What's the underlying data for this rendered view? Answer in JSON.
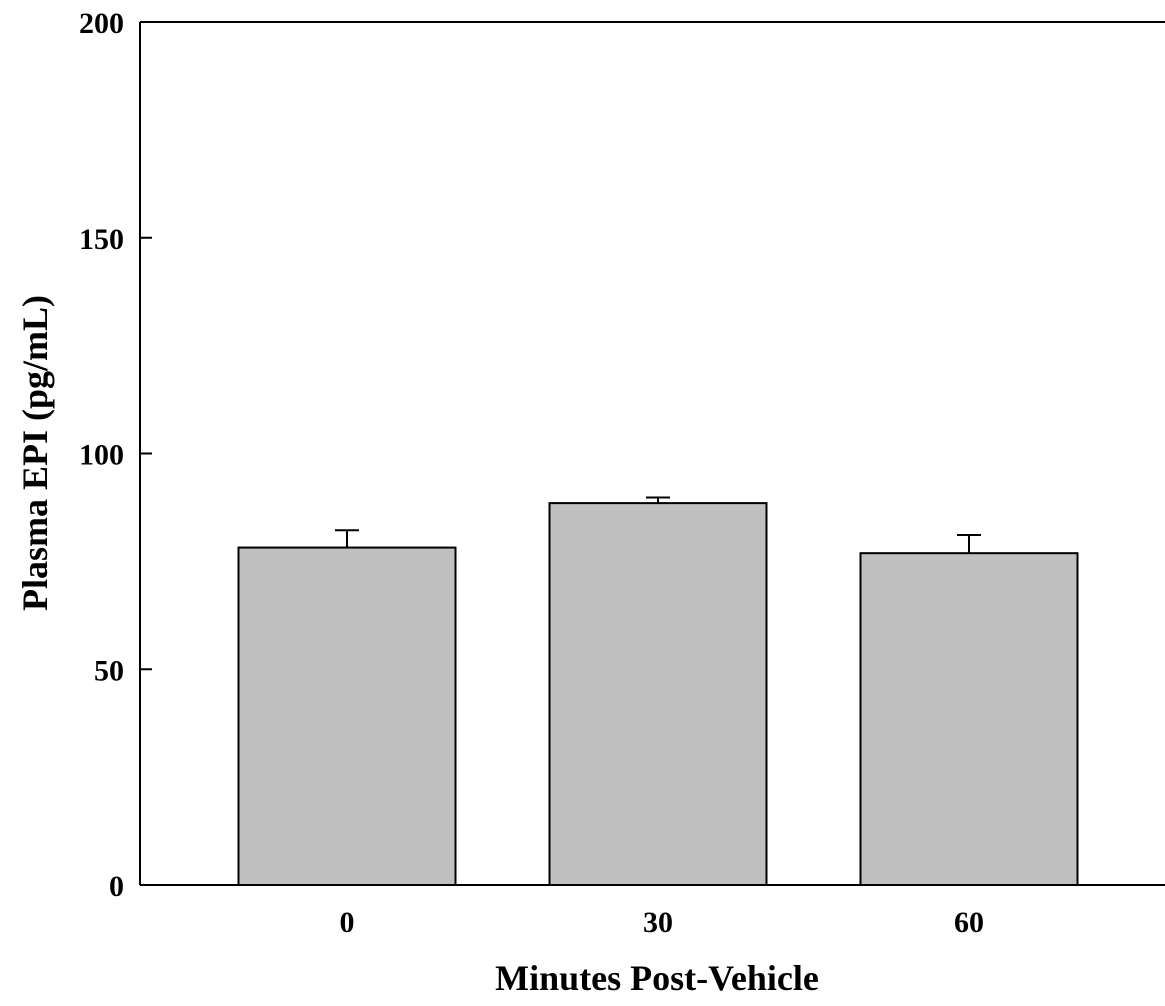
{
  "chart_data": {
    "type": "bar",
    "title": "",
    "xlabel": "Minutes Post-Vehicle",
    "ylabel": "Plasma EPI (pg/mL)",
    "categories": [
      "0",
      "30",
      "60"
    ],
    "values": [
      78.2,
      88.5,
      76.9
    ],
    "error_upper": [
      4.0,
      1.3,
      4.2
    ],
    "ylim": [
      0,
      200
    ],
    "yticks": [
      0,
      50,
      100,
      150,
      200
    ],
    "ytick_labels": [
      "0",
      "50",
      "100",
      "150",
      "200"
    ],
    "grid": false,
    "legend": "none",
    "colors": {
      "bar_fill": "#c0c0c0",
      "bar_stroke": "#000000",
      "axis": "#000000"
    }
  }
}
